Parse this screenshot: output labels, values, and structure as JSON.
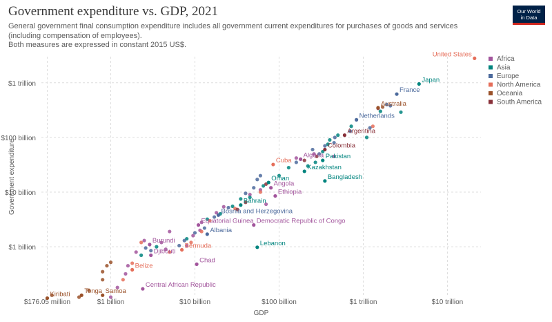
{
  "title": "Government expenditure vs. GDP, 2021",
  "subtitle": "General government final consumption expenditure includes all government current expenditures for purchases of goods and services (including compensation of employees).",
  "subtitle2": "Both measures are expressed in constant 2015 US$.",
  "logo": {
    "line1": "Our World",
    "line2": "in Data"
  },
  "chart_data": {
    "type": "scatter",
    "xlabel": "GDP",
    "ylabel": "Government expenditure",
    "x_scale": "log",
    "y_scale": "log",
    "xlim": [
      150000000,
      25000000000000
    ],
    "ylim": [
      120000000,
      3000000000000
    ],
    "x_ticks": [
      {
        "value": 176050000,
        "label": "$176.05 million"
      },
      {
        "value": 1000000000,
        "label": "$1 billion"
      },
      {
        "value": 10000000000,
        "label": "$10 billion"
      },
      {
        "value": 100000000000,
        "label": "$100 billion"
      },
      {
        "value": 1000000000000,
        "label": "$1 trillion"
      },
      {
        "value": 10000000000000,
        "label": "$10 trillion"
      }
    ],
    "y_ticks": [
      {
        "value": 1000000000,
        "label": "$1 billion"
      },
      {
        "value": 10000000000,
        "label": "$10 billion"
      },
      {
        "value": 100000000000,
        "label": "$100 billion"
      },
      {
        "value": 1000000000000,
        "label": "$1 trillion"
      }
    ],
    "grid": true,
    "legend_position": "right",
    "legend": [
      {
        "name": "Africa",
        "color": "#a2559c"
      },
      {
        "name": "Asia",
        "color": "#00847e"
      },
      {
        "name": "Europe",
        "color": "#4c6a9c"
      },
      {
        "name": "North America",
        "color": "#e56e5a"
      },
      {
        "name": "Oceania",
        "color": "#9a5129"
      },
      {
        "name": "South America",
        "color": "#883039"
      }
    ],
    "labeled_points": [
      {
        "name": "United States",
        "region": "North America",
        "x": 21000000000000,
        "y": 2800000000000
      },
      {
        "name": "Japan",
        "region": "Asia",
        "x": 4600000000000,
        "y": 950000000000
      },
      {
        "name": "France",
        "region": "Europe",
        "x": 2500000000000,
        "y": 620000000000
      },
      {
        "name": "Australia",
        "region": "Oceania",
        "x": 1500000000000,
        "y": 350000000000
      },
      {
        "name": "Netherlands",
        "region": "Europe",
        "x": 830000000000,
        "y": 210000000000
      },
      {
        "name": "Argentina",
        "region": "South America",
        "x": 600000000000,
        "y": 110000000000
      },
      {
        "name": "Colombia",
        "region": "South America",
        "x": 350000000000,
        "y": 60000000000
      },
      {
        "name": "Algeria",
        "region": "Africa",
        "x": 180000000000,
        "y": 40000000000
      },
      {
        "name": "Pakistan",
        "region": "Asia",
        "x": 330000000000,
        "y": 38000000000
      },
      {
        "name": "Cuba",
        "region": "North America",
        "x": 85000000000,
        "y": 32000000000
      },
      {
        "name": "Kazakhstan",
        "region": "Asia",
        "x": 200000000000,
        "y": 24000000000
      },
      {
        "name": "Bangladesh",
        "region": "Asia",
        "x": 350000000000,
        "y": 16000000000
      },
      {
        "name": "Oman",
        "region": "Asia",
        "x": 75000000000,
        "y": 15000000000
      },
      {
        "name": "Angola",
        "region": "Africa",
        "x": 80000000000,
        "y": 12000000000
      },
      {
        "name": "Ethiopia",
        "region": "Africa",
        "x": 90000000000,
        "y": 8500000000
      },
      {
        "name": "Bahrain",
        "region": "Asia",
        "x": 35000000000,
        "y": 5800000000
      },
      {
        "name": "Bosnia and Herzegovina",
        "region": "Europe",
        "x": 19000000000,
        "y": 3800000000
      },
      {
        "name": "Equatorial Guinea",
        "region": "Africa",
        "x": 11000000000,
        "y": 2500000000
      },
      {
        "name": "Democratic Republic of Congo",
        "region": "Africa",
        "x": 50000000000,
        "y": 2500000000
      },
      {
        "name": "Albania",
        "region": "Europe",
        "x": 14000000000,
        "y": 1700000000
      },
      {
        "name": "Burundi",
        "region": "Africa",
        "x": 2900000000,
        "y": 1100000000
      },
      {
        "name": "Bermuda",
        "region": "North America",
        "x": 7000000000,
        "y": 880000000
      },
      {
        "name": "Lebanon",
        "region": "Asia",
        "x": 55000000000,
        "y": 980000000
      },
      {
        "name": "Djibouti",
        "region": "Africa",
        "x": 3000000000,
        "y": 700000000
      },
      {
        "name": "Chad",
        "region": "Africa",
        "x": 10500000000,
        "y": 480000000
      },
      {
        "name": "Belize",
        "region": "North America",
        "x": 1800000000,
        "y": 380000000
      },
      {
        "name": "Central African Republic",
        "region": "Africa",
        "x": 2400000000,
        "y": 170000000
      },
      {
        "name": "Tonga",
        "region": "Oceania",
        "x": 450000000,
        "y": 130000000
      },
      {
        "name": "Samoa",
        "region": "Oceania",
        "x": 800000000,
        "y": 130000000
      },
      {
        "name": "Kiribati",
        "region": "Oceania",
        "x": 176050000,
        "y": 115000000
      }
    ],
    "other_points": [
      {
        "region": "Asia",
        "x": 2800000000000,
        "y": 290000000000
      },
      {
        "region": "Europe",
        "x": 1900000000000,
        "y": 400000000000
      },
      {
        "region": "Europe",
        "x": 2100000000000,
        "y": 380000000000
      },
      {
        "region": "Oceania",
        "x": 1700000000000,
        "y": 360000000000
      },
      {
        "region": "Asia",
        "x": 1600000000000,
        "y": 300000000000
      },
      {
        "region": "South America",
        "x": 1500000000000,
        "y": 340000000000
      },
      {
        "region": "North America",
        "x": 1300000000000,
        "y": 160000000000
      },
      {
        "region": "Asia",
        "x": 1100000000000,
        "y": 100000000000
      },
      {
        "region": "Europe",
        "x": 1200000000000,
        "y": 150000000000
      },
      {
        "region": "Asia",
        "x": 720000000000,
        "y": 160000000000
      },
      {
        "region": "Europe",
        "x": 700000000000,
        "y": 130000000000
      },
      {
        "region": "Asia",
        "x": 500000000000,
        "y": 110000000000
      },
      {
        "region": "Europe",
        "x": 460000000000,
        "y": 100000000000
      },
      {
        "region": "Asia",
        "x": 400000000000,
        "y": 90000000000
      },
      {
        "region": "Europe",
        "x": 450000000000,
        "y": 80000000000
      },
      {
        "region": "Asia",
        "x": 380000000000,
        "y": 75000000000
      },
      {
        "region": "Europe",
        "x": 350000000000,
        "y": 70000000000
      },
      {
        "region": "Asia",
        "x": 330000000000,
        "y": 55000000000
      },
      {
        "region": "Africa",
        "x": 260000000000,
        "y": 50000000000
      },
      {
        "region": "Europe",
        "x": 300000000000,
        "y": 50000000000
      },
      {
        "region": "South America",
        "x": 280000000000,
        "y": 45000000000
      },
      {
        "region": "Africa",
        "x": 450000000000,
        "y": 45000000000
      },
      {
        "region": "Asia",
        "x": 270000000000,
        "y": 35000000000
      },
      {
        "region": "Europe",
        "x": 250000000000,
        "y": 60000000000
      },
      {
        "region": "Asia",
        "x": 220000000000,
        "y": 30000000000
      },
      {
        "region": "Europe",
        "x": 160000000000,
        "y": 35000000000
      },
      {
        "region": "South America",
        "x": 200000000000,
        "y": 38000000000
      },
      {
        "region": "Asia",
        "x": 130000000000,
        "y": 28000000000
      },
      {
        "region": "Africa",
        "x": 160000000000,
        "y": 42000000000
      },
      {
        "region": "Asia",
        "x": 100000000000,
        "y": 20000000000
      },
      {
        "region": "Europe",
        "x": 60000000000,
        "y": 20000000000
      },
      {
        "region": "Europe",
        "x": 55000000000,
        "y": 17000000000
      },
      {
        "region": "Asia",
        "x": 65000000000,
        "y": 13000000000
      },
      {
        "region": "South America",
        "x": 70000000000,
        "y": 14000000000
      },
      {
        "region": "Africa",
        "x": 60000000000,
        "y": 11000000000
      },
      {
        "region": "Europe",
        "x": 50000000000,
        "y": 12000000000
      },
      {
        "region": "North America",
        "x": 60000000000,
        "y": 10000000000
      },
      {
        "region": "Africa",
        "x": 45000000000,
        "y": 9000000000
      },
      {
        "region": "Asia",
        "x": 45000000000,
        "y": 8000000000
      },
      {
        "region": "Europe",
        "x": 40000000000,
        "y": 9500000000
      },
      {
        "region": "Asia",
        "x": 35000000000,
        "y": 7500000000
      },
      {
        "region": "South America",
        "x": 40000000000,
        "y": 6500000000
      },
      {
        "region": "Africa",
        "x": 70000000000,
        "y": 6000000000
      },
      {
        "region": "Asia",
        "x": 28000000000,
        "y": 5500000000
      },
      {
        "region": "Europe",
        "x": 25000000000,
        "y": 5200000000
      },
      {
        "region": "North America",
        "x": 30000000000,
        "y": 5000000000
      },
      {
        "region": "Africa",
        "x": 22000000000,
        "y": 5400000000
      },
      {
        "region": "South America",
        "x": 32000000000,
        "y": 4800000000
      },
      {
        "region": "Africa",
        "x": 18000000000,
        "y": 4200000000
      },
      {
        "region": "Asia",
        "x": 20000000000,
        "y": 4000000000
      },
      {
        "region": "Europe",
        "x": 17000000000,
        "y": 3500000000
      },
      {
        "region": "North America",
        "x": 15000000000,
        "y": 3000000000
      },
      {
        "region": "Africa",
        "x": 12000000000,
        "y": 2800000000
      },
      {
        "region": "Asia",
        "x": 14000000000,
        "y": 3200000000
      },
      {
        "region": "Europe",
        "x": 13000000000,
        "y": 2200000000
      },
      {
        "region": "Africa",
        "x": 11500000000,
        "y": 2000000000
      },
      {
        "region": "North America",
        "x": 12000000000,
        "y": 1900000000
      },
      {
        "region": "Europe",
        "x": 10000000000,
        "y": 1800000000
      },
      {
        "region": "Africa",
        "x": 9500000000,
        "y": 1600000000
      },
      {
        "region": "Asia",
        "x": 8000000000,
        "y": 1400000000
      },
      {
        "region": "Europe",
        "x": 7500000000,
        "y": 1300000000
      },
      {
        "region": "North America",
        "x": 9000000000,
        "y": 1200000000
      },
      {
        "region": "Africa",
        "x": 8000000000,
        "y": 1050000000
      },
      {
        "region": "Africa",
        "x": 5000000000,
        "y": 1900000000
      },
      {
        "region": "Europe",
        "x": 6500000000,
        "y": 1050000000
      },
      {
        "region": "Africa",
        "x": 4500000000,
        "y": 900000000
      },
      {
        "region": "North America",
        "x": 5000000000,
        "y": 800000000
      },
      {
        "region": "Africa",
        "x": 4000000000,
        "y": 1200000000
      },
      {
        "region": "Asia",
        "x": 3500000000,
        "y": 1000000000
      },
      {
        "region": "Europe",
        "x": 3000000000,
        "y": 850000000
      },
      {
        "region": "Africa",
        "x": 2500000000,
        "y": 1300000000
      },
      {
        "region": "North America",
        "x": 2300000000,
        "y": 1200000000
      },
      {
        "region": "Africa",
        "x": 2000000000,
        "y": 800000000
      },
      {
        "region": "Asia",
        "x": 2300000000,
        "y": 700000000
      },
      {
        "region": "Europe",
        "x": 2600000000,
        "y": 950000000
      },
      {
        "region": "North America",
        "x": 1800000000,
        "y": 500000000
      },
      {
        "region": "Africa",
        "x": 1600000000,
        "y": 450000000
      },
      {
        "region": "Oceania",
        "x": 900000000,
        "y": 450000000
      },
      {
        "region": "Oceania",
        "x": 1000000000,
        "y": 520000000
      },
      {
        "region": "Oceania",
        "x": 800000000,
        "y": 350000000
      },
      {
        "region": "Africa",
        "x": 1500000000,
        "y": 320000000
      },
      {
        "region": "Africa",
        "x": 1200000000,
        "y": 180000000
      },
      {
        "region": "Oceania",
        "x": 800000000,
        "y": 250000000
      },
      {
        "region": "North America",
        "x": 1400000000,
        "y": 250000000
      },
      {
        "region": "Oceania",
        "x": 550000000,
        "y": 160000000
      },
      {
        "region": "Oceania",
        "x": 200000000,
        "y": 130000000
      },
      {
        "region": "Africa",
        "x": 1000000000,
        "y": 120000000
      },
      {
        "region": "Oceania",
        "x": 420000000,
        "y": 120000000
      }
    ]
  }
}
